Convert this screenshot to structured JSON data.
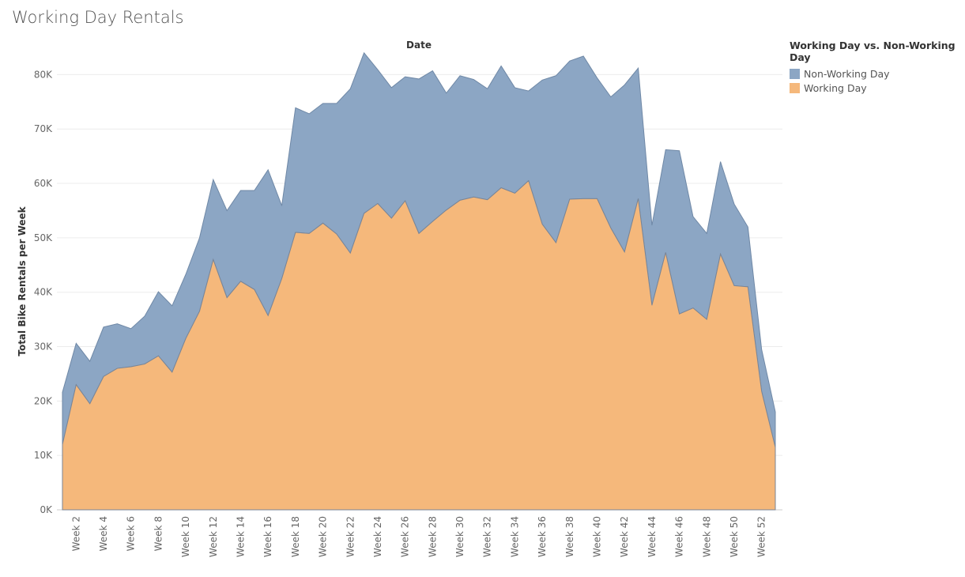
{
  "chart_data": {
    "type": "area",
    "title": "Working Day Rentals",
    "top_axis_label": "Date",
    "ylabel": "Total Bike Rentals per Week",
    "ylim": [
      0,
      85000
    ],
    "y_ticks": [
      0,
      10000,
      20000,
      30000,
      40000,
      50000,
      60000,
      70000,
      80000
    ],
    "y_tick_labels": [
      "0K",
      "10K",
      "20K",
      "30K",
      "40K",
      "50K",
      "60K",
      "70K",
      "80K"
    ],
    "stacked": true,
    "grid": true,
    "legend": {
      "title": "Working Day vs. Non-Working Day",
      "placement": "top-right"
    },
    "x": [
      1,
      2,
      3,
      4,
      5,
      6,
      7,
      8,
      9,
      10,
      11,
      12,
      13,
      14,
      15,
      16,
      17,
      18,
      19,
      20,
      21,
      22,
      23,
      24,
      25,
      26,
      27,
      28,
      29,
      30,
      31,
      32,
      33,
      34,
      35,
      36,
      37,
      38,
      39,
      40,
      41,
      42,
      43,
      44,
      45,
      46,
      47,
      48,
      49,
      50,
      51,
      52,
      53
    ],
    "x_tick_labels": [
      "Week 2",
      "Week 4",
      "Week 6",
      "Week 8",
      "Week 10",
      "Week 12",
      "Week 14",
      "Week 16",
      "Week 18",
      "Week 20",
      "Week 22",
      "Week 24",
      "Week 26",
      "Week 28",
      "Week 30",
      "Week 32",
      "Week 34",
      "Week 36",
      "Week 38",
      "Week 40",
      "Week 42",
      "Week 44",
      "Week 46",
      "Week 48",
      "Week 50",
      "Week 52"
    ],
    "series": [
      {
        "name": "Working Day",
        "color": "#f5b87b",
        "values": [
          12000,
          23000,
          19500,
          24500,
          26000,
          26300,
          26800,
          28300,
          25300,
          31500,
          36500,
          46000,
          39000,
          42000,
          40500,
          35700,
          42500,
          51000,
          50800,
          52700,
          50700,
          47200,
          54500,
          56300,
          53600,
          56800,
          50800,
          53000,
          55100,
          56900,
          57500,
          57000,
          59200,
          58200,
          60500,
          52500,
          49100,
          57100,
          57200,
          57200,
          51800,
          47400,
          57200,
          37600,
          47300,
          36000,
          37100,
          35000,
          47000,
          41200,
          41000,
          21800,
          11500
        ]
      },
      {
        "name": "Non-Working Day",
        "color": "#8ca6c4",
        "values": [
          9600,
          7600,
          7800,
          9100,
          8200,
          7000,
          8800,
          11800,
          12200,
          11800,
          13500,
          14700,
          16000,
          16700,
          18200,
          26800,
          13400,
          22900,
          22000,
          22000,
          24000,
          30200,
          29500,
          24600,
          24000,
          22800,
          28400,
          27700,
          21500,
          22900,
          21600,
          20400,
          22400,
          19400,
          16500,
          26500,
          30700,
          25400,
          26200,
          22200,
          24100,
          30700,
          24000,
          14700,
          18900,
          30000,
          16800,
          15800,
          17000,
          15000,
          11000,
          7700,
          6500
        ]
      }
    ]
  }
}
